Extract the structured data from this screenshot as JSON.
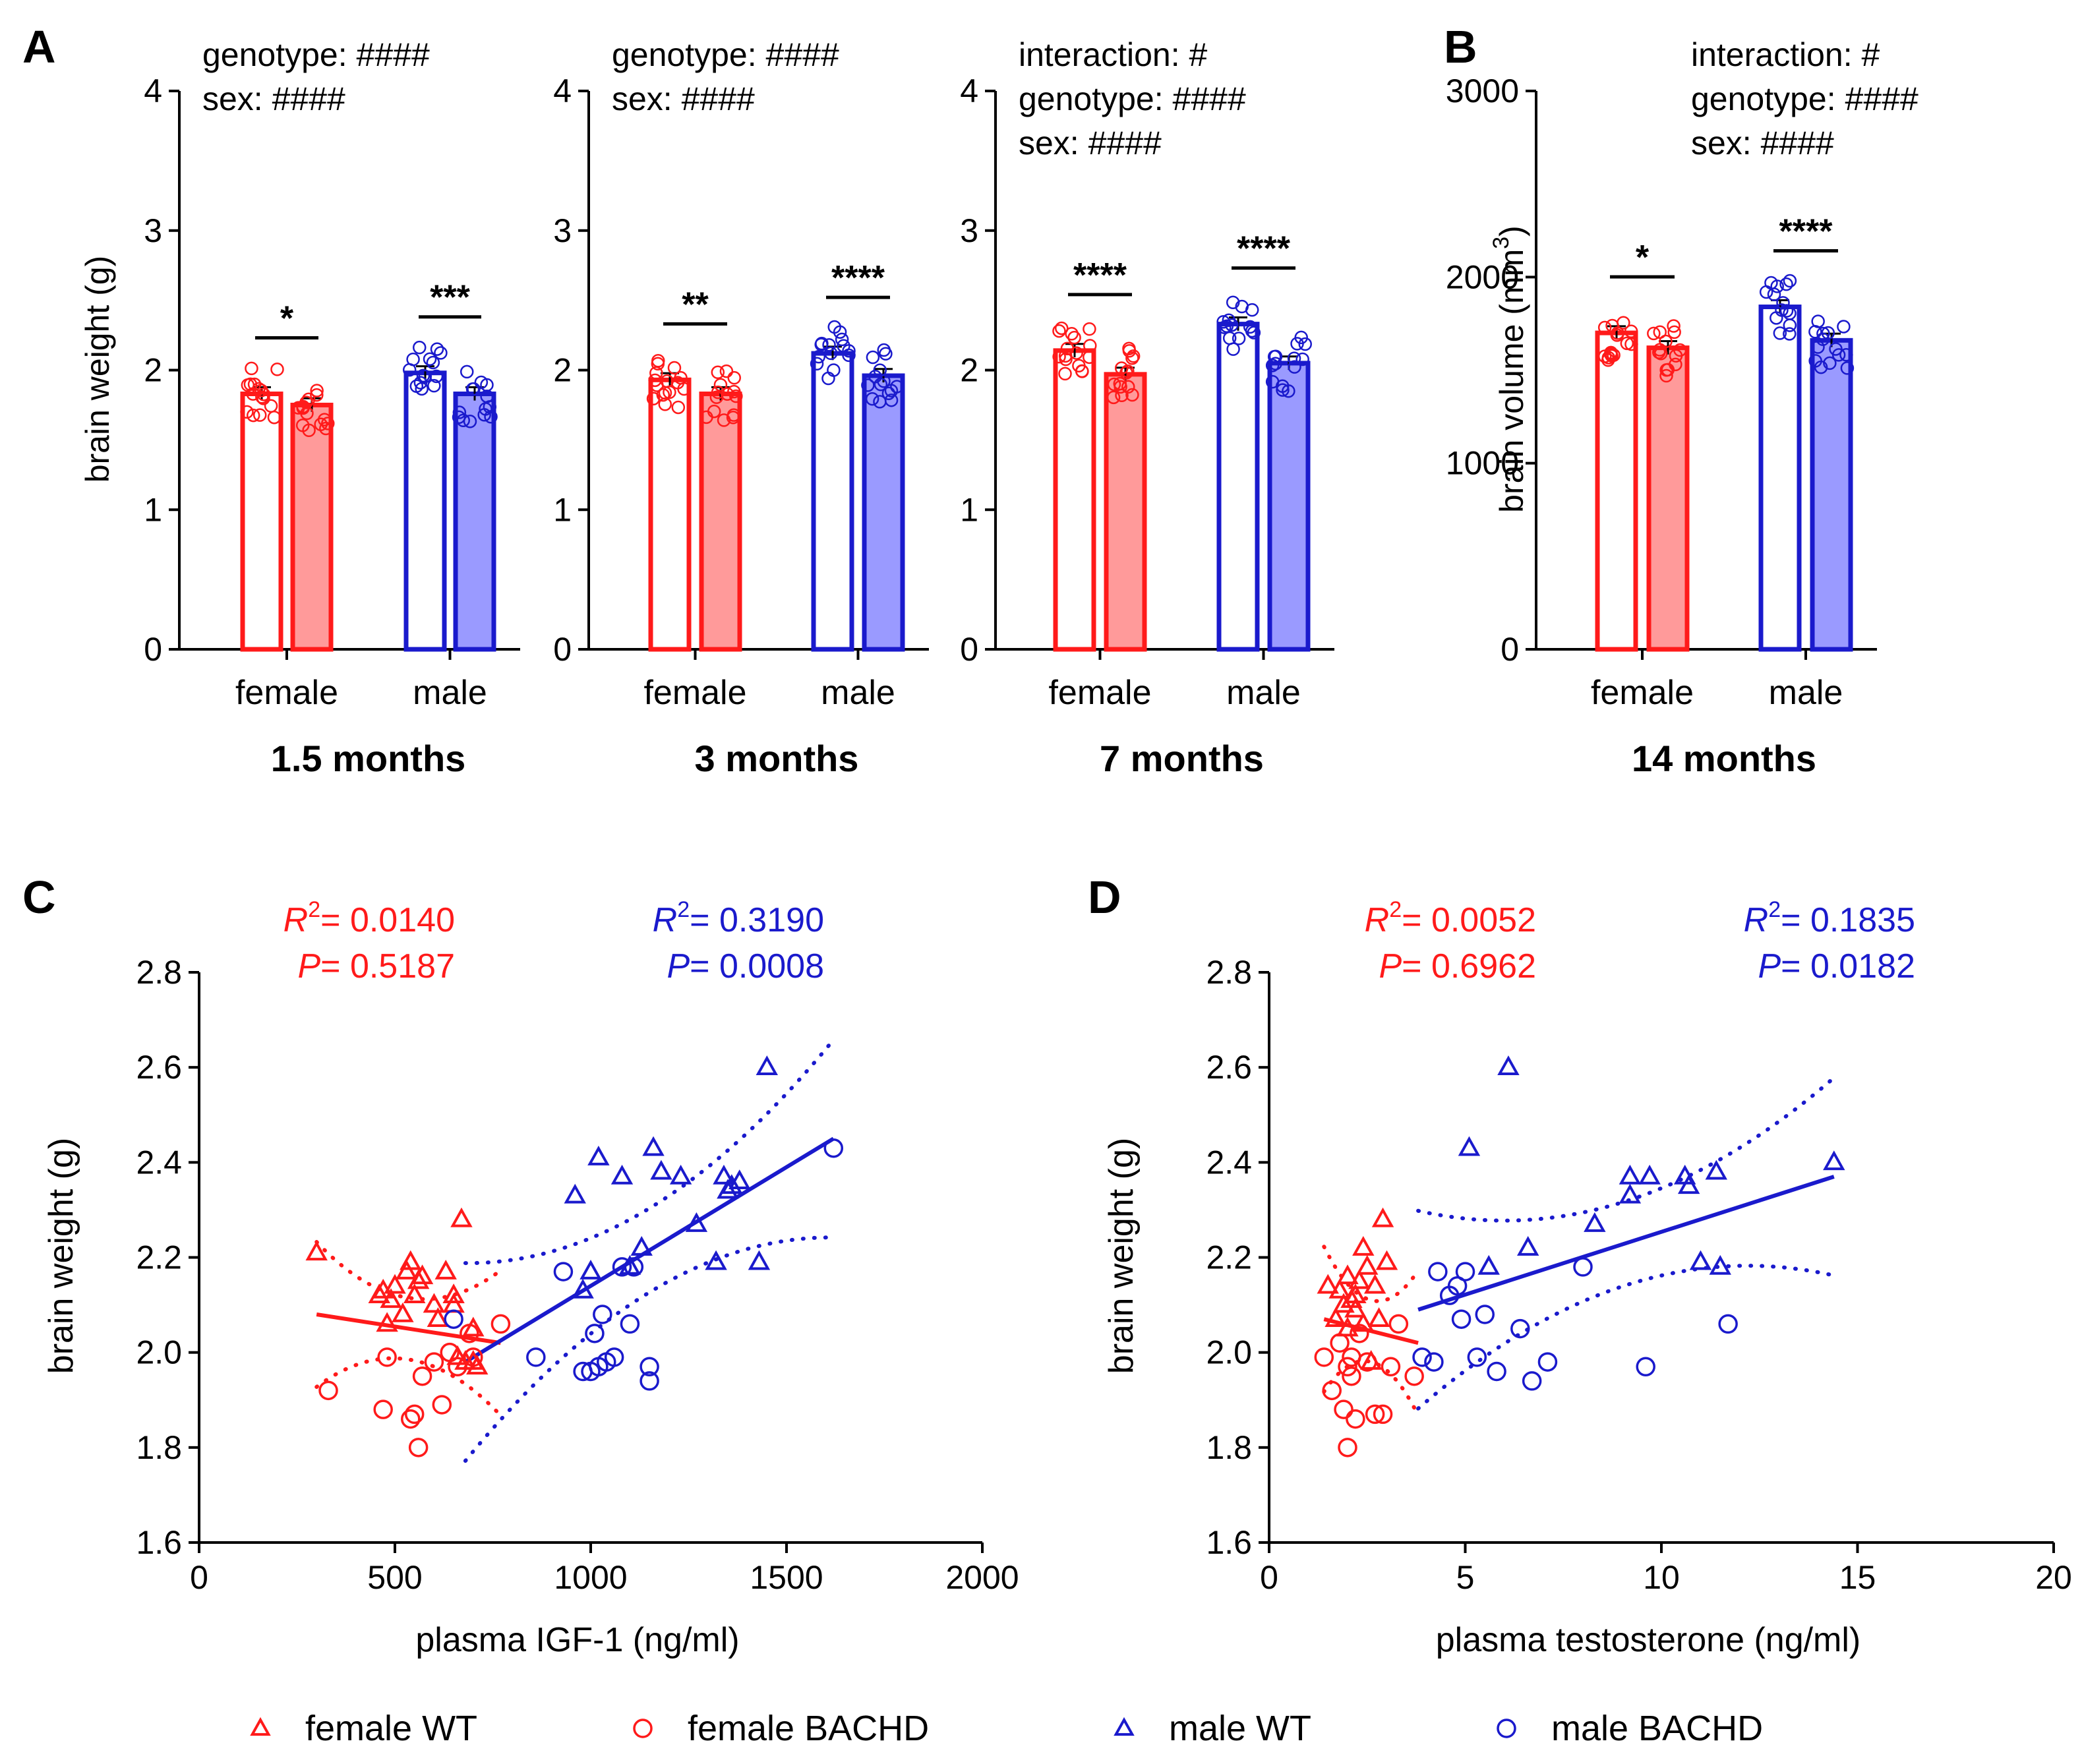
{
  "figure": {
    "panel_labels": [
      "A",
      "B",
      "C",
      "D"
    ],
    "colors": {
      "female": "#ff1a1a",
      "male": "#1a1acc",
      "female_fill": "#ff9a9a",
      "male_fill": "#9a9aff"
    }
  },
  "chart_data": [
    {
      "panel": "A",
      "type": "bar",
      "title": "1.5 months",
      "ylabel": "brain weight (g)",
      "ylim": [
        0,
        4
      ],
      "yticks": [
        "0",
        "1",
        "2",
        "3",
        "4"
      ],
      "categories": [
        "female",
        "male"
      ],
      "series": [
        {
          "name": "female WT",
          "values": [
            1.83,
            null
          ]
        },
        {
          "name": "female BACHD",
          "values": [
            1.75,
            null
          ]
        },
        {
          "name": "male WT",
          "values": [
            null,
            1.98
          ]
        },
        {
          "name": "male BACHD",
          "values": [
            null,
            1.83
          ]
        }
      ],
      "stats": [
        "genotype: ####",
        "sex: ####"
      ],
      "significance": [
        "*",
        "***"
      ]
    },
    {
      "panel": "A",
      "type": "bar",
      "title": "3 months",
      "ylabel": "",
      "ylim": [
        0,
        4
      ],
      "yticks": [
        "0",
        "1",
        "2",
        "3",
        "4"
      ],
      "categories": [
        "female",
        "male"
      ],
      "series": [
        {
          "name": "female WT",
          "values": [
            1.93,
            null
          ]
        },
        {
          "name": "female BACHD",
          "values": [
            1.83,
            null
          ]
        },
        {
          "name": "male WT",
          "values": [
            null,
            2.12
          ]
        },
        {
          "name": "male BACHD",
          "values": [
            null,
            1.96
          ]
        }
      ],
      "stats": [
        "genotype: ####",
        "sex: ####"
      ],
      "significance": [
        "**",
        "****"
      ]
    },
    {
      "panel": "A",
      "type": "bar",
      "title": "7 months",
      "ylabel": "",
      "ylim": [
        0,
        4
      ],
      "yticks": [
        "0",
        "1",
        "2",
        "3",
        "4"
      ],
      "categories": [
        "female",
        "male"
      ],
      "series": [
        {
          "name": "female WT",
          "values": [
            2.14,
            null
          ]
        },
        {
          "name": "female BACHD",
          "values": [
            1.97,
            null
          ]
        },
        {
          "name": "male WT",
          "values": [
            null,
            2.33
          ]
        },
        {
          "name": "male BACHD",
          "values": [
            null,
            2.05
          ]
        }
      ],
      "stats": [
        "interaction: #",
        "genotype: ####",
        "sex: ####"
      ],
      "significance": [
        "****",
        "****"
      ]
    },
    {
      "panel": "B",
      "type": "bar",
      "title": "14 months",
      "ylabel": "brain volume (mm",
      "ylabel_sup": "3",
      "ylabel_close": ")",
      "ylim": [
        0,
        3000
      ],
      "yticks": [
        "0",
        "1000",
        "2000",
        "3000"
      ],
      "categories": [
        "female",
        "male"
      ],
      "series": [
        {
          "name": "female WT",
          "values": [
            1700,
            null
          ]
        },
        {
          "name": "female BACHD",
          "values": [
            1620,
            null
          ]
        },
        {
          "name": "male WT",
          "values": [
            null,
            1840
          ]
        },
        {
          "name": "male BACHD",
          "values": [
            null,
            1660
          ]
        }
      ],
      "stats": [
        "interaction: #",
        "genotype: ####",
        "sex: ####"
      ],
      "significance": [
        "*",
        "****"
      ]
    },
    {
      "panel": "C",
      "type": "scatter",
      "xlabel": "plasma IGF-1 (ng/ml)",
      "ylabel": "brain weight (g)",
      "xlim": [
        0,
        2000
      ],
      "ylim": [
        1.6,
        2.8
      ],
      "xticks": [
        "0",
        "500",
        "1000",
        "1500",
        "2000"
      ],
      "yticks": [
        "1.6",
        "1.8",
        "2.0",
        "2.2",
        "2.4",
        "2.6",
        "2.8"
      ],
      "annotations": {
        "female_r2": "= 0.0140",
        "female_p": "= 0.5187",
        "male_r2": "= 0.3190",
        "male_p": "= 0.0008"
      },
      "fits": {
        "female": {
          "x": [
            300,
            770
          ],
          "y": [
            2.08,
            2.02
          ]
        },
        "male": {
          "x": [
            680,
            1620
          ],
          "y": [
            1.98,
            2.45
          ]
        }
      },
      "series": [
        {
          "name": "female WT",
          "marker": "triangle",
          "color": "#ff1a1a",
          "x": [
            300,
            460,
            470,
            480,
            490,
            500,
            520,
            530,
            540,
            550,
            570,
            600,
            630,
            650,
            660,
            670,
            680,
            700,
            710,
            700,
            650,
            610,
            560
          ],
          "y": [
            2.21,
            2.12,
            2.13,
            2.06,
            2.11,
            2.14,
            2.08,
            2.17,
            2.19,
            2.12,
            2.16,
            2.1,
            2.17,
            2.12,
            1.99,
            2.28,
            1.98,
            1.98,
            1.97,
            2.05,
            2.1,
            2.07,
            2.15
          ]
        },
        {
          "name": "female BACHD",
          "marker": "circle",
          "color": "#ff1a1a",
          "x": [
            330,
            470,
            480,
            540,
            550,
            560,
            570,
            600,
            620,
            640,
            660,
            690,
            700,
            770
          ],
          "y": [
            1.92,
            1.88,
            1.99,
            1.86,
            1.87,
            1.8,
            1.95,
            1.98,
            1.89,
            2.0,
            1.97,
            2.04,
            1.99,
            2.06
          ]
        },
        {
          "name": "male WT",
          "marker": "triangle",
          "color": "#1a1acc",
          "x": [
            960,
            980,
            1000,
            1020,
            1080,
            1100,
            1130,
            1160,
            1180,
            1230,
            1270,
            1320,
            1340,
            1350,
            1360,
            1380,
            1430,
            1450
          ],
          "y": [
            2.33,
            2.13,
            2.17,
            2.41,
            2.37,
            2.18,
            2.22,
            2.43,
            2.38,
            2.37,
            2.27,
            2.19,
            2.37,
            2.34,
            2.35,
            2.36,
            2.19,
            2.6
          ]
        },
        {
          "name": "male BACHD",
          "marker": "circle",
          "color": "#1a1acc",
          "x": [
            650,
            860,
            930,
            980,
            1000,
            1010,
            1020,
            1030,
            1040,
            1060,
            1080,
            1100,
            1110,
            1150,
            1150,
            1620
          ],
          "y": [
            2.07,
            1.99,
            2.17,
            1.96,
            1.96,
            2.04,
            1.97,
            2.08,
            1.98,
            1.99,
            2.18,
            2.06,
            2.18,
            1.97,
            1.94,
            2.43
          ]
        }
      ]
    },
    {
      "panel": "D",
      "type": "scatter",
      "xlabel": "plasma testosterone (ng/ml)",
      "ylabel": "brain weight (g)",
      "xlim": [
        0,
        20
      ],
      "ylim": [
        1.6,
        2.8
      ],
      "xticks": [
        "0",
        "5",
        "10",
        "15",
        "20"
      ],
      "yticks": [
        "1.6",
        "1.8",
        "2.0",
        "2.2",
        "2.4",
        "2.6",
        "2.8"
      ],
      "annotations": {
        "female_r2": "= 0.0052",
        "female_p": "= 0.6962",
        "male_r2": "= 0.1835",
        "male_p": "= 0.0182"
      },
      "fits": {
        "female": {
          "x": [
            1.4,
            3.8
          ],
          "y": [
            2.07,
            2.02
          ]
        },
        "male": {
          "x": [
            3.8,
            14.4
          ],
          "y": [
            2.09,
            2.37
          ]
        }
      },
      "series": [
        {
          "name": "female WT",
          "marker": "triangle",
          "color": "#ff1a1a",
          "x": [
            1.5,
            1.7,
            1.8,
            1.9,
            2.0,
            2.1,
            2.2,
            2.3,
            2.4,
            2.5,
            2.6,
            2.7,
            2.8,
            2.9,
            3.0,
            2.0,
            2.2,
            2.4
          ],
          "y": [
            2.14,
            2.07,
            2.13,
            2.1,
            2.16,
            2.11,
            2.09,
            2.15,
            2.22,
            2.18,
            1.98,
            2.14,
            2.07,
            2.28,
            2.19,
            2.05,
            2.12,
            2.06
          ]
        },
        {
          "name": "female BACHD",
          "marker": "circle",
          "color": "#ff1a1a",
          "x": [
            1.4,
            1.6,
            1.8,
            1.9,
            2.0,
            2.0,
            2.1,
            2.1,
            2.2,
            2.3,
            2.5,
            2.7,
            2.9,
            3.1,
            3.3,
            3.7
          ],
          "y": [
            1.99,
            1.92,
            2.02,
            1.88,
            1.97,
            1.8,
            1.95,
            1.99,
            1.86,
            2.04,
            1.98,
            1.87,
            1.87,
            1.97,
            2.06,
            1.95
          ]
        },
        {
          "name": "male WT",
          "marker": "triangle",
          "color": "#1a1acc",
          "x": [
            5.1,
            5.6,
            6.1,
            6.6,
            8.3,
            9.2,
            9.2,
            9.7,
            10.6,
            10.7,
            11.0,
            11.4,
            11.5,
            14.4
          ],
          "y": [
            2.43,
            2.18,
            2.6,
            2.22,
            2.27,
            2.37,
            2.33,
            2.37,
            2.37,
            2.35,
            2.19,
            2.38,
            2.18,
            2.4
          ]
        },
        {
          "name": "male BACHD",
          "marker": "circle",
          "color": "#1a1acc",
          "x": [
            3.9,
            4.2,
            4.3,
            4.6,
            4.8,
            4.9,
            5.0,
            5.3,
            5.5,
            5.8,
            6.4,
            6.7,
            7.1,
            8.0,
            9.6,
            11.7
          ],
          "y": [
            1.99,
            1.98,
            2.17,
            2.12,
            2.14,
            2.07,
            2.17,
            1.99,
            2.08,
            1.96,
            2.05,
            1.94,
            1.98,
            2.18,
            1.97,
            2.06
          ]
        }
      ]
    }
  ],
  "legend": [
    {
      "label": "female WT",
      "marker": "triangle",
      "color": "#ff1a1a"
    },
    {
      "label": "female BACHD",
      "marker": "circle",
      "color": "#ff1a1a"
    },
    {
      "label": "male WT",
      "marker": "triangle",
      "color": "#1a1acc"
    },
    {
      "label": "male BACHD",
      "marker": "circle",
      "color": "#1a1acc"
    }
  ]
}
